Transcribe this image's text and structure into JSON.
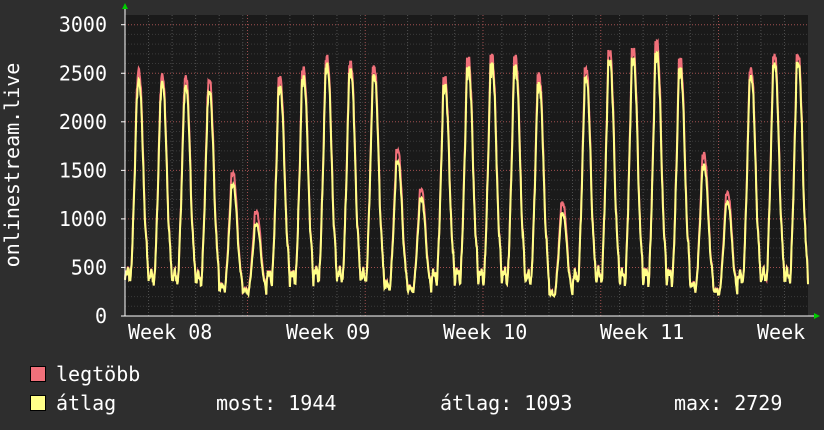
{
  "chart_data": {
    "type": "line",
    "ylabel": "onlinestream.live",
    "ylim": [
      0,
      3100
    ],
    "yticks": [
      0,
      500,
      1000,
      1500,
      2000,
      2500,
      3000
    ],
    "x_tick_labels": [
      "Week 08",
      "Week 09",
      "Week 10",
      "Week 11",
      "Week"
    ],
    "grid": true,
    "legend_position": "bottom-left",
    "day_peaks_max": [
      2550,
      2500,
      2480,
      2450,
      1480,
      1080,
      2470,
      2560,
      2680,
      2620,
      2580,
      1720,
      1310,
      2460,
      2660,
      2690,
      2680,
      2500,
      1170,
      2560,
      2740,
      2760,
      2830,
      2650,
      1680,
      1280,
      2560,
      2700,
      2700
    ],
    "day_peaks_avg": [
      2440,
      2420,
      2380,
      2330,
      1360,
      950,
      2370,
      2470,
      2600,
      2540,
      2490,
      1600,
      1220,
      2380,
      2560,
      2600,
      2580,
      2400,
      1060,
      2460,
      2640,
      2660,
      2710,
      2550,
      1560,
      1180,
      2480,
      2610,
      2620
    ],
    "day_troughs": [
      330,
      300,
      300,
      290,
      240,
      220,
      300,
      300,
      320,
      310,
      300,
      240,
      230,
      300,
      310,
      300,
      300,
      290,
      180,
      290,
      300,
      290,
      300,
      300,
      240,
      200,
      290,
      300,
      300
    ],
    "series": [
      {
        "name": "legtöbb",
        "color": "#f0707a"
      },
      {
        "name": "átlag",
        "color": "#ffff88"
      }
    ]
  },
  "legend": {
    "max_label": "legtöbb",
    "avg_label": "átlag"
  },
  "stats": {
    "current": "most: 1944",
    "average": "átlag: 1093",
    "maximum": "max: 2729"
  },
  "colors": {
    "plot_bg": "#1a1a1a",
    "page_bg": "#2e2e2e",
    "grid": "#505050",
    "axis": "#ffffff",
    "arrow": "#00cc00"
  }
}
